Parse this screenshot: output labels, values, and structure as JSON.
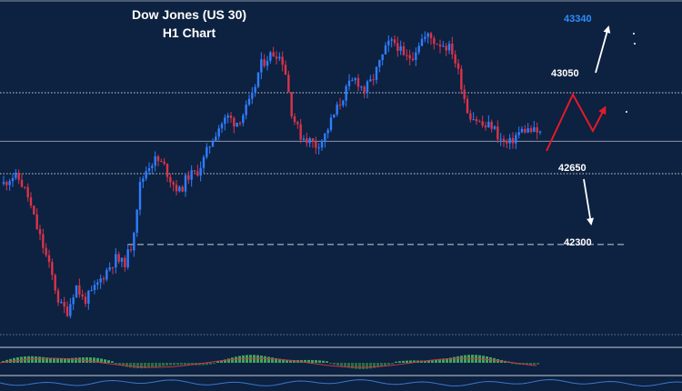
{
  "chart_data": {
    "type": "candlestick",
    "title": "Dow Jones (US 30)",
    "subtitle": "H1 Chart",
    "ylim": [
      41800,
      43500
    ],
    "levels": [
      {
        "label": "43340",
        "value": 43340,
        "style": "target",
        "color": "#2d8cff"
      },
      {
        "label": "43050",
        "value": 43050,
        "style": "dotted",
        "color": "#ffffff"
      },
      {
        "label": "42650",
        "value": 42650,
        "style": "dotted",
        "color": "#ffffff"
      },
      {
        "label": "42300",
        "value": 42300,
        "style": "dashed",
        "color": "#ffffff"
      }
    ],
    "current_price": 42810,
    "close_path": [
      42600,
      42640,
      42620,
      42540,
      42400,
      42280,
      42150,
      42000,
      41970,
      42100,
      42020,
      42060,
      42120,
      42180,
      42230,
      42200,
      42300,
      42590,
      42690,
      42720,
      42690,
      42610,
      42560,
      42640,
      42650,
      42720,
      42820,
      42890,
      42930,
      42900,
      42950,
      43020,
      43180,
      43230,
      43250,
      43200,
      42950,
      42840,
      42820,
      42790,
      42830,
      42920,
      43000,
      43080,
      43120,
      43060,
      43110,
      43200,
      43290,
      43300,
      43220,
      43230,
      43310,
      43330,
      43300,
      43290,
      43260,
      43120,
      42950,
      42920,
      42880,
      42890,
      42820,
      42790,
      42840,
      42870,
      42860,
      42850
    ],
    "colors": {
      "up": "#2f7dff",
      "down": "#d9344a",
      "background": "#0d2140",
      "forecast_up": "#e21b2a"
    }
  }
}
